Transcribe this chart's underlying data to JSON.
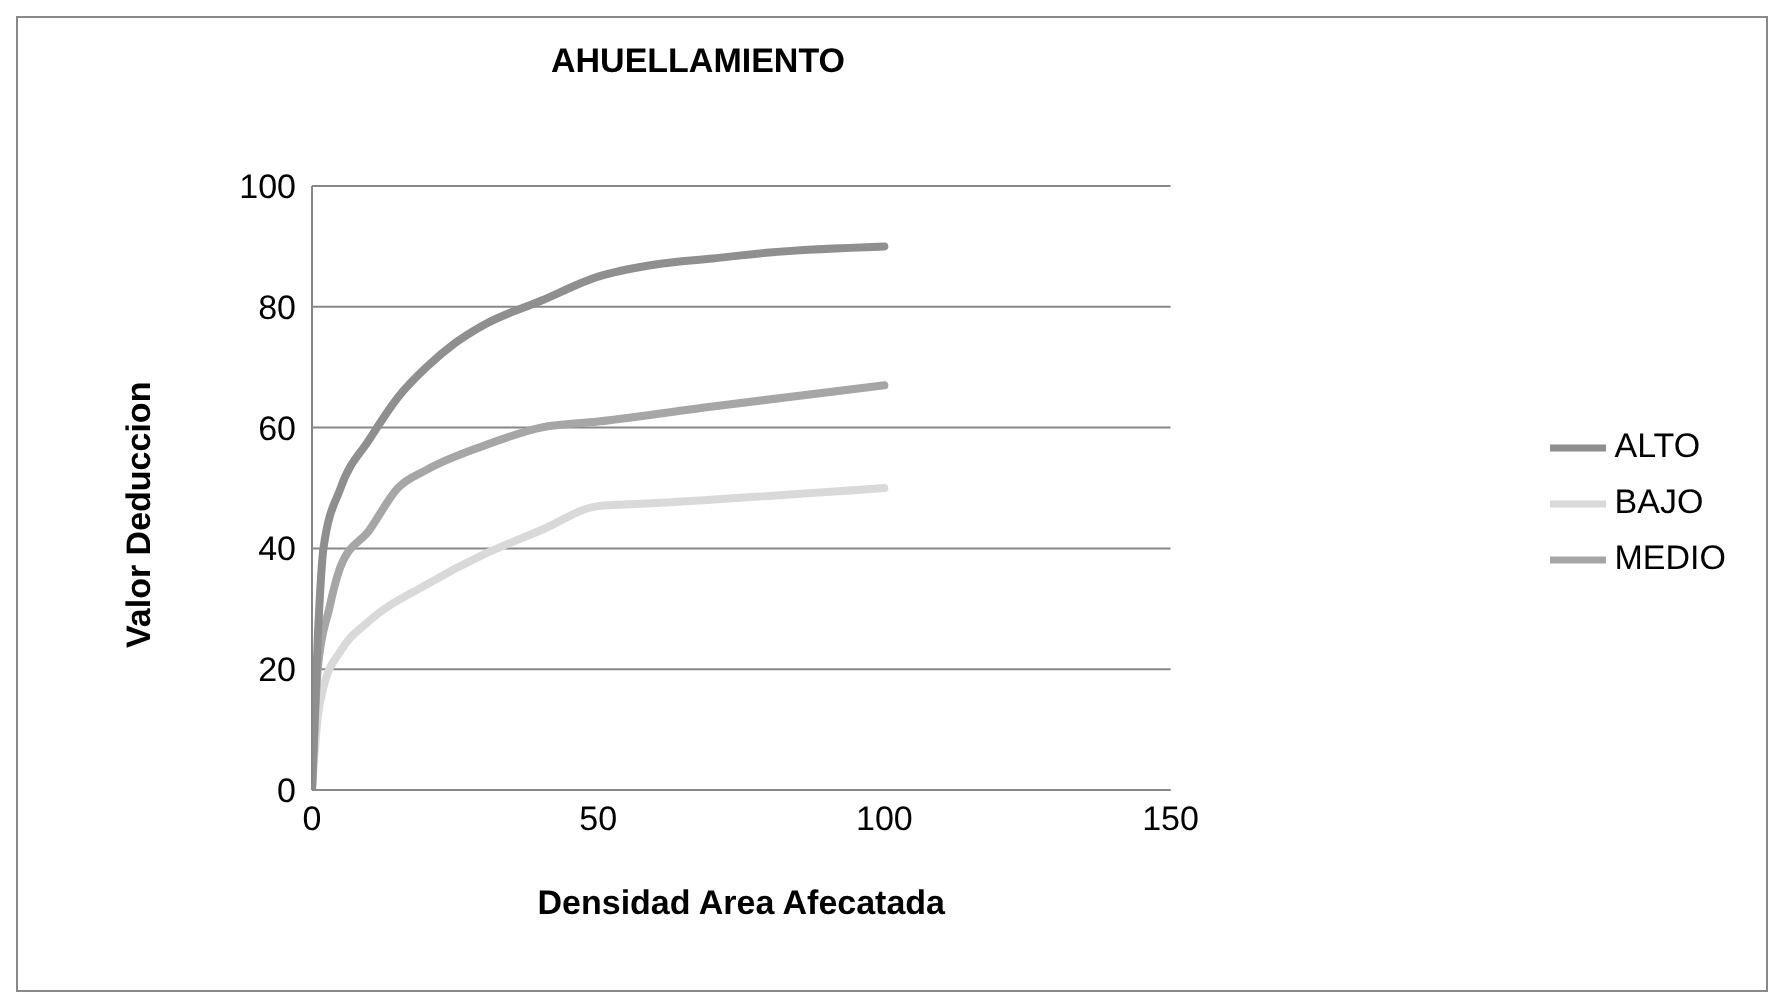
{
  "chart_data": {
    "type": "line",
    "title": "AHUELLAMIENTO",
    "xlabel": "Densidad Area Afecatada",
    "ylabel": "Valor Deduccion",
    "xlim": [
      0,
      150
    ],
    "xticks": [
      0,
      50,
      100,
      150
    ],
    "ylim": [
      0,
      100
    ],
    "yticks": [
      0,
      20,
      40,
      60,
      80,
      100
    ],
    "grid": "y",
    "legend": "right",
    "marker": "none",
    "line_style": "solid",
    "series": [
      {
        "name": "BAJO",
        "color": "#d9d9d9",
        "x": [
          0,
          1,
          2,
          5,
          10,
          20,
          30,
          40,
          50,
          60,
          100
        ],
        "values": [
          0,
          12,
          17,
          23,
          28,
          34,
          39,
          43,
          47,
          47.5,
          50
        ]
      },
      {
        "name": "MEDIO",
        "color": "#a6a6a6",
        "x": [
          0,
          1,
          3,
          5,
          10,
          15,
          20,
          30,
          40,
          50,
          70,
          100
        ],
        "values": [
          0,
          20,
          30,
          37,
          43,
          50,
          53,
          57,
          60,
          61,
          63.5,
          67
        ]
      },
      {
        "name": "ALTO",
        "color": "#8f8f8f",
        "x": [
          0,
          1,
          2,
          5,
          10,
          15,
          20,
          25,
          30,
          40,
          50,
          60,
          70,
          80,
          100
        ],
        "values": [
          0,
          25,
          40,
          50,
          58,
          65,
          70,
          74,
          77,
          81,
          85,
          87,
          88,
          89,
          90
        ]
      }
    ]
  }
}
